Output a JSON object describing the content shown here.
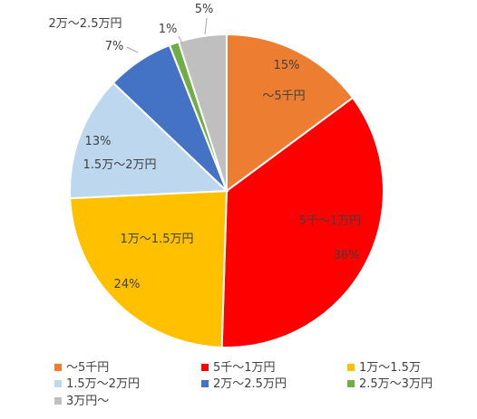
{
  "chart_data": {
    "type": "pie",
    "categories": [
      "～5千円",
      "5千～1万円",
      "1万～1.5万円",
      "1.5万～2万円",
      "2万～2.5万円",
      "2.5万～3万円",
      "3万円～"
    ],
    "values": [
      15,
      36,
      24,
      13,
      7,
      1,
      5
    ],
    "percent_labels": [
      "15%",
      "36%",
      "24%",
      "13%",
      "7%",
      "1%",
      "5%"
    ],
    "slice_labels": [
      "～5千円",
      "5千～1万円",
      "1万～1.5万円",
      "1.5万～2万円",
      "2万～2.5万円",
      "",
      ""
    ],
    "colors": [
      "#ED7D31",
      "#FF0000",
      "#FFC000",
      "#BDD7EE",
      "#4472C4",
      "#70AD47",
      "#BFBFBF"
    ],
    "legend": {
      "position": "bottom",
      "labels": [
        "～5千円",
        "5千～1万円",
        "1万～1.5万",
        "1.5万～2万円",
        "2万～2.5万円",
        "2.5万～3万円",
        "3万円～"
      ]
    }
  }
}
